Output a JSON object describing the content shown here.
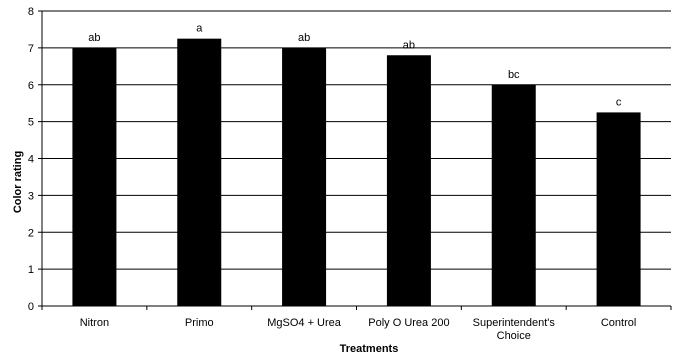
{
  "chart_data": {
    "type": "bar",
    "xlabel": "Treatments",
    "ylabel": "Color rating",
    "ylim": [
      0,
      8
    ],
    "yticks": [
      "0",
      "1",
      "2",
      "3",
      "4",
      "5",
      "6",
      "7",
      "8"
    ],
    "grid": true,
    "bar_color": "#000000",
    "categories": [
      [
        "Nitron"
      ],
      [
        "Primo"
      ],
      [
        "MgSO4 + Urea"
      ],
      [
        "Poly O Urea 200"
      ],
      [
        "Superintendent's",
        "Choice"
      ],
      [
        "Control"
      ]
    ],
    "values": [
      7.0,
      7.25,
      7.0,
      6.8,
      6.0,
      5.25
    ],
    "data_labels": [
      "ab",
      "a",
      "ab",
      "ab",
      "bc",
      "c"
    ]
  }
}
